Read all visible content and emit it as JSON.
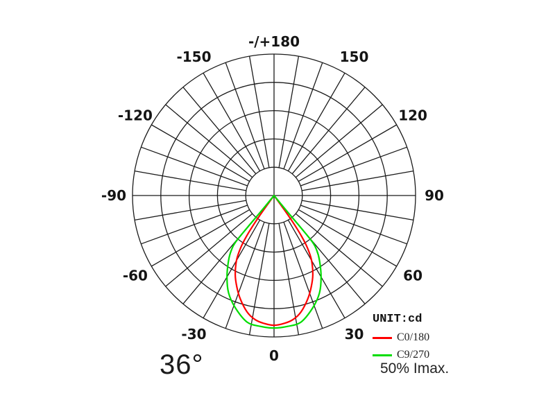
{
  "page": {
    "background": "#ffffff",
    "grid_color": "#1a1a1a",
    "label_color": "#141414"
  },
  "chart_data": {
    "type": "polar_photometric",
    "description": "Luminous intensity distribution polar curve (candela), angles in degrees from nadir (0 at bottom), radius = relative intensity fraction of full radial scale, 5 radial rings at 20% steps",
    "unit": "cd",
    "angle_tick_step_deg": 10,
    "angle_label_step_deg": 30,
    "radial_rings": 5,
    "symmetric": true,
    "grid_on": true,
    "legend_position": "bottom-right",
    "angle_labels": [
      {
        "angle": 0,
        "text": "0"
      },
      {
        "angle": 30,
        "text": "30"
      },
      {
        "angle": 60,
        "text": "60"
      },
      {
        "angle": 90,
        "text": "90"
      },
      {
        "angle": 120,
        "text": "120"
      },
      {
        "angle": 150,
        "text": "150"
      },
      {
        "angle": 180,
        "text": "-/+180"
      },
      {
        "angle": -30,
        "text": "-30"
      },
      {
        "angle": -60,
        "text": "-60"
      },
      {
        "angle": -90,
        "text": "-90"
      },
      {
        "angle": -120,
        "text": "-120"
      },
      {
        "angle": -150,
        "text": "-150"
      }
    ],
    "series": [
      {
        "name": "C0/180",
        "color": "#ff0000",
        "points_deg_fraction": [
          [
            0,
            0.917
          ],
          [
            5,
            0.905
          ],
          [
            9,
            0.885
          ],
          [
            13,
            0.845
          ],
          [
            18,
            0.77
          ],
          [
            22,
            0.7
          ],
          [
            26,
            0.625
          ],
          [
            30,
            0.53
          ],
          [
            32.5,
            0.44
          ],
          [
            34,
            0.35
          ],
          [
            35,
            0.25
          ],
          [
            35.8,
            0.13
          ],
          [
            36,
            0
          ]
        ]
      },
      {
        "name": "C9/270",
        "color": "#00dd00",
        "points_deg_fraction": [
          [
            0,
            0.937
          ],
          [
            6,
            0.93
          ],
          [
            12,
            0.915
          ],
          [
            19,
            0.84
          ],
          [
            25,
            0.76
          ],
          [
            30,
            0.665
          ],
          [
            35,
            0.56
          ],
          [
            38,
            0.49
          ],
          [
            39.5,
            0.43
          ],
          [
            39.8,
            0.29
          ],
          [
            39.4,
            0.15
          ],
          [
            38.5,
            0
          ]
        ]
      }
    ]
  },
  "legend": {
    "unit": "UNIT:cd",
    "entries": [
      {
        "label": "C0/180",
        "color": "#ff0000"
      },
      {
        "label": "C9/270",
        "color": "#00dd00"
      }
    ]
  },
  "annotations": {
    "beam_angle": "36°",
    "imax_note": "50% Imax."
  }
}
